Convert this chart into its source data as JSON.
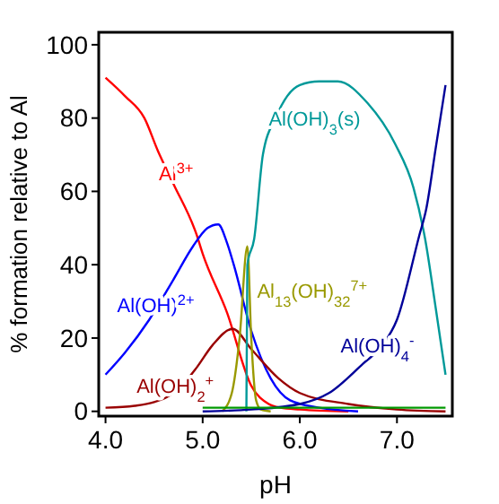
{
  "chart_data": {
    "type": "line",
    "xlabel": "pH",
    "ylabel": "% formation relative to Al",
    "xlim": [
      3.93,
      7.57
    ],
    "ylim": [
      -1.3,
      103.4
    ],
    "xticks": [
      {
        "value": 4,
        "label": "4.0"
      },
      {
        "value": 5,
        "label": "5.0"
      },
      {
        "value": 6,
        "label": "6.0"
      },
      {
        "value": 7,
        "label": "7.0"
      }
    ],
    "yticks": [
      0,
      20,
      40,
      60,
      80,
      100
    ],
    "grid": false,
    "legend": false,
    "line_style": "solid",
    "series": [
      {
        "name": "Al$^{3+}$",
        "color": "#ff0000",
        "x": [
          4.0,
          4.2,
          4.4,
          4.54,
          4.7,
          4.94,
          5.0,
          5.25,
          5.5,
          5.68,
          5.8,
          6.0,
          6.5
        ],
        "values": [
          91,
          86,
          80,
          71,
          62,
          48,
          43,
          27,
          7,
          2,
          1,
          0.5,
          0
        ]
      },
      {
        "name": "Al(OH)$^{2+}$",
        "color": "#0000ff",
        "x": [
          4.0,
          4.2,
          4.45,
          4.7,
          4.9,
          5.05,
          5.16,
          5.25,
          5.32,
          5.5,
          5.7,
          5.9,
          6.2,
          6.6
        ],
        "values": [
          10,
          16,
          25,
          36,
          45,
          50,
          51,
          46,
          40,
          22,
          9,
          3,
          1,
          0
        ]
      },
      {
        "name": "Al(OH)$_{2}$$^{+}$",
        "color": "#990000",
        "x": [
          4.0,
          4.3,
          4.5,
          4.75,
          4.94,
          5.1,
          5.31,
          5.5,
          5.78,
          6.0,
          6.5,
          7.0,
          7.5
        ],
        "values": [
          1,
          1.5,
          2.5,
          6,
          12,
          18,
          22.5,
          17,
          9,
          5,
          2,
          0.5,
          0
        ]
      },
      {
        "name": "Al$_{13}$(OH)$_{32}$$^{7+}$",
        "color": "#999900",
        "x": [
          5.2,
          5.3,
          5.38,
          5.46,
          5.5,
          5.55,
          5.6,
          5.7
        ],
        "values": [
          0,
          5,
          20,
          45,
          20,
          3,
          0.5,
          0
        ]
      },
      {
        "name": "Al(OH)$_{3}$(s)",
        "color": "#009999",
        "x": [
          5.45,
          5.46,
          5.53,
          5.62,
          5.75,
          6.0,
          6.2,
          6.39,
          6.7,
          6.98,
          7.17,
          7.29,
          7.4,
          7.5
        ],
        "values": [
          0,
          40,
          47,
          70,
          80,
          89,
          90,
          90,
          84,
          73,
          61,
          47,
          28,
          10
        ]
      },
      {
        "name": "Al(OH)$_{4}$$^{-}$",
        "color": "#000099",
        "x": [
          5.0,
          5.5,
          6.0,
          6.3,
          6.65,
          6.85,
          7.0,
          7.23,
          7.3,
          7.4,
          7.5
        ],
        "values": [
          0,
          0.5,
          2,
          5,
          13,
          18,
          25,
          48,
          55,
          72,
          89
        ]
      },
      {
        "color": "#009900",
        "x": [
          5.0,
          6.0,
          7.5
        ],
        "values": [
          1,
          1,
          1
        ]
      }
    ]
  }
}
